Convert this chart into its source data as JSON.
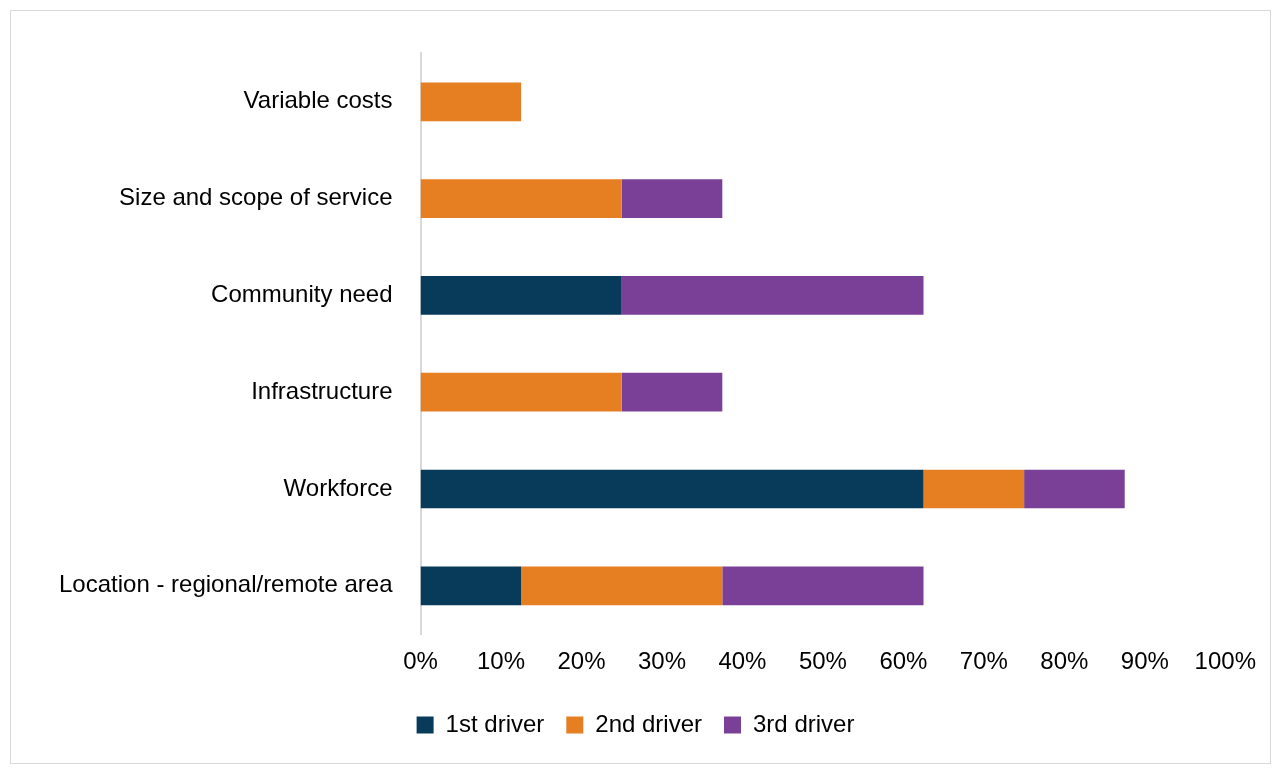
{
  "chart_data": {
    "type": "bar",
    "orientation": "horizontal",
    "stacked": true,
    "categories": [
      "Variable costs",
      "Size and scope of service",
      "Community need",
      "Infrastructure",
      "Workforce",
      "Location - regional/remote area"
    ],
    "series": [
      {
        "name": "1st driver",
        "color": "#083b5a",
        "values": [
          0,
          0,
          25,
          0,
          62.5,
          12.5
        ]
      },
      {
        "name": "2nd driver",
        "color": "#e67e22",
        "values": [
          12.5,
          25,
          0,
          25,
          12.5,
          25
        ]
      },
      {
        "name": "3rd driver",
        "color": "#7a4097",
        "values": [
          0,
          12.5,
          37.5,
          12.5,
          12.5,
          25
        ]
      }
    ],
    "xlim": [
      0,
      100
    ],
    "xticks": [
      {
        "value": 0,
        "label": "0%"
      },
      {
        "value": 10,
        "label": "10%"
      },
      {
        "value": 20,
        "label": "20%"
      },
      {
        "value": 30,
        "label": "30%"
      },
      {
        "value": 40,
        "label": "40%"
      },
      {
        "value": 50,
        "label": "50%"
      },
      {
        "value": 60,
        "label": "60%"
      },
      {
        "value": 70,
        "label": "70%"
      },
      {
        "value": 80,
        "label": "80%"
      },
      {
        "value": 90,
        "label": "90%"
      },
      {
        "value": 100,
        "label": "100%"
      }
    ],
    "grid": false,
    "legend": "bottom"
  }
}
